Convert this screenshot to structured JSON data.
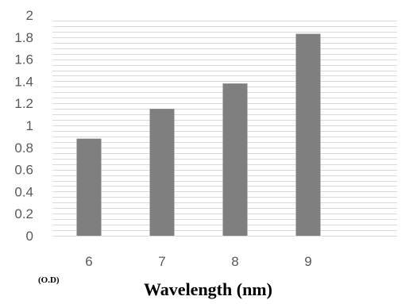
{
  "chart_data": {
    "type": "bar",
    "categories": [
      "6",
      "7",
      "8",
      "9"
    ],
    "values": [
      0.88,
      1.15,
      1.38,
      1.83
    ],
    "title": "",
    "xlabel": "Wavelength (nm)",
    "ylabel": "",
    "unit_label": "(O.D)",
    "ylim": [
      0,
      2
    ],
    "y_ticks": [
      "0",
      "0.2",
      "0.4",
      "0.6",
      "0.8",
      "1",
      "1.2",
      "1.4",
      "1.6",
      "1.8",
      "2"
    ],
    "grid": true,
    "legend": "none",
    "colors": {
      "bar": "#7f7f7f",
      "grid": "#d9d9d9",
      "baseline": "#d9d9d9",
      "tick_text": "#595959"
    }
  }
}
